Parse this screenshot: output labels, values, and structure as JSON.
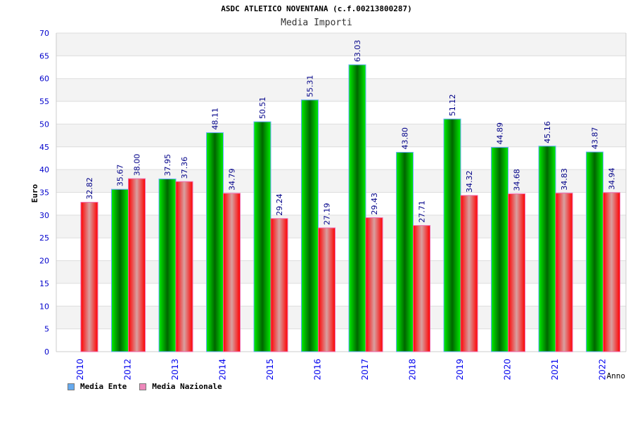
{
  "chart_data": {
    "type": "bar",
    "title": "ASDC ATLETICO NOVENTANA (c.f.00213800287)",
    "subtitle": "Media Importi",
    "xlabel": "Anno",
    "ylabel": "Euro",
    "ylim": [
      0,
      70
    ],
    "ystep": 5,
    "categories": [
      "2010",
      "2012",
      "2013",
      "2014",
      "2015",
      "2016",
      "2017",
      "2018",
      "2019",
      "2020",
      "2021",
      "2022"
    ],
    "series": [
      {
        "name": "Media Ente",
        "color": "#00cc00",
        "legend_color": "#66aaee",
        "values": [
          null,
          35.67,
          37.95,
          48.11,
          50.51,
          55.31,
          63.03,
          43.8,
          51.12,
          44.89,
          45.16,
          43.87
        ],
        "labels": [
          "",
          "35.67",
          "37.95",
          "48.11",
          "50.51",
          "55.31",
          "63.03",
          "43.80",
          "51.12",
          "44.89",
          "45.16",
          "43.87"
        ]
      },
      {
        "name": "Media Nazionale",
        "color": "#ff0000",
        "legend_color": "#ee88bb",
        "values": [
          32.82,
          38.0,
          37.36,
          34.79,
          29.24,
          27.19,
          29.43,
          27.71,
          34.32,
          34.68,
          34.83,
          34.94
        ],
        "labels": [
          "32.82",
          "38.00",
          "37.36",
          "34.79",
          "29.24",
          "27.19",
          "29.43",
          "27.71",
          "34.32",
          "34.68",
          "34.83",
          "34.94"
        ]
      }
    ],
    "grid": true,
    "legend": "bottom-left"
  }
}
